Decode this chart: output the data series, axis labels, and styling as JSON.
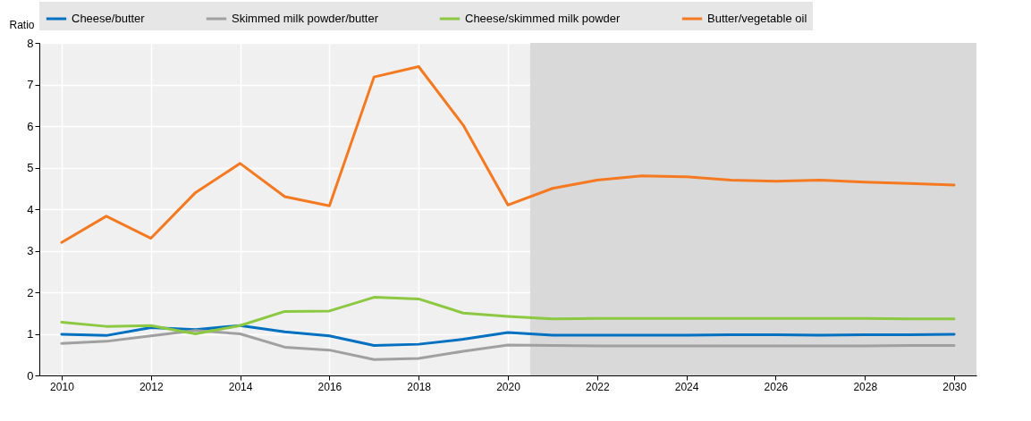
{
  "chart_data": {
    "type": "line",
    "ylabel": "Ratio",
    "x": [
      2010,
      2011,
      2012,
      2013,
      2014,
      2015,
      2016,
      2017,
      2018,
      2019,
      2020,
      2021,
      2022,
      2023,
      2024,
      2025,
      2026,
      2027,
      2028,
      2029,
      2030
    ],
    "series": [
      {
        "name": "Cheese/butter",
        "color": "#0070c0",
        "values": [
          0.99,
          0.96,
          1.15,
          1.1,
          1.2,
          1.05,
          0.95,
          0.72,
          0.75,
          0.87,
          1.03,
          0.97,
          0.97,
          0.97,
          0.97,
          0.98,
          0.98,
          0.97,
          0.98,
          0.98,
          0.99
        ]
      },
      {
        "name": "Skimmed milk powder/butter",
        "color": "#a0a0a0",
        "values": [
          0.77,
          0.82,
          0.95,
          1.08,
          1.0,
          0.68,
          0.61,
          0.38,
          0.41,
          0.58,
          0.73,
          0.72,
          0.71,
          0.71,
          0.71,
          0.71,
          0.71,
          0.71,
          0.71,
          0.72,
          0.72
        ]
      },
      {
        "name": "Cheese/skimmed milk powder",
        "color": "#8cc841",
        "values": [
          1.28,
          1.18,
          1.2,
          1.0,
          1.2,
          1.54,
          1.55,
          1.88,
          1.84,
          1.5,
          1.42,
          1.36,
          1.37,
          1.37,
          1.37,
          1.37,
          1.37,
          1.37,
          1.37,
          1.36,
          1.36
        ]
      },
      {
        "name": "Butter/vegetable oil",
        "color": "#f47920",
        "values": [
          3.2,
          3.83,
          3.3,
          4.4,
          5.1,
          4.3,
          4.08,
          7.18,
          7.43,
          6.02,
          4.1,
          4.5,
          4.7,
          4.8,
          4.78,
          4.7,
          4.67,
          4.7,
          4.65,
          4.62,
          4.58
        ]
      }
    ],
    "xlim": [
      2009.5,
      2030.5
    ],
    "xticks": [
      2010,
      2012,
      2014,
      2016,
      2018,
      2020,
      2022,
      2024,
      2026,
      2028,
      2030
    ],
    "ylim": [
      0,
      8
    ],
    "yticks": [
      0,
      1,
      2,
      3,
      4,
      5,
      6,
      7,
      8
    ],
    "bands": [
      {
        "axis": "x",
        "from": 2020.5,
        "to": 2030.5,
        "color": "#d9d9d9"
      }
    ],
    "grid": true,
    "legend": "top",
    "marker": "none",
    "line_style": "solid"
  }
}
